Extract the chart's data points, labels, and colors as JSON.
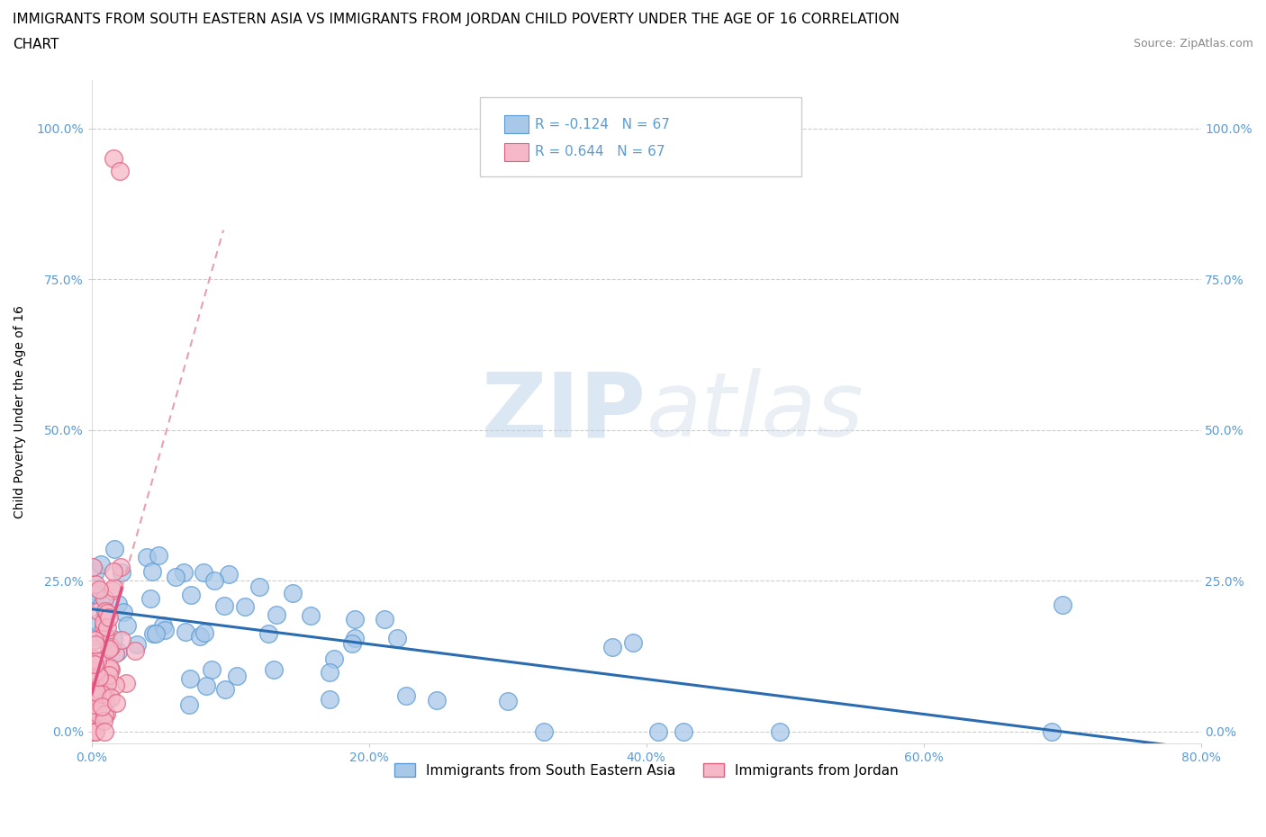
{
  "title_line1": "IMMIGRANTS FROM SOUTH EASTERN ASIA VS IMMIGRANTS FROM JORDAN CHILD POVERTY UNDER THE AGE OF 16 CORRELATION",
  "title_line2": "CHART",
  "source": "Source: ZipAtlas.com",
  "ylabel": "Child Poverty Under the Age of 16",
  "xlim": [
    0,
    0.8
  ],
  "ylim": [
    -0.02,
    1.08
  ],
  "xticks": [
    0.0,
    0.2,
    0.4,
    0.6,
    0.8
  ],
  "yticks": [
    0.0,
    0.25,
    0.5,
    0.75,
    1.0
  ],
  "xticklabels": [
    "0.0%",
    "20.0%",
    "40.0%",
    "60.0%",
    "80.0%"
  ],
  "yticklabels": [
    "0.0%",
    "25.0%",
    "50.0%",
    "75.0%",
    "100.0%"
  ],
  "series1_color": "#a8c8e8",
  "series1_color_edge": "#5b9bd5",
  "series2_color": "#f4b8c8",
  "series2_color_edge": "#e06080",
  "trend1_color": "#2b6cb0",
  "trend2_color": "#e05080",
  "trend2_dash_color": "#e8a0b0",
  "R1": -0.124,
  "R2": 0.644,
  "N1": 67,
  "N2": 67,
  "legend_label1": "Immigrants from South Eastern Asia",
  "legend_label2": "Immigrants from Jordan",
  "watermark_zip": "ZIP",
  "watermark_atlas": "atlas",
  "title_fontsize": 11,
  "label_fontsize": 10,
  "tick_fontsize": 10,
  "legend_fontsize": 11,
  "axis_color": "#5b9bd5",
  "grid_color": "#cccccc",
  "seed": 12
}
